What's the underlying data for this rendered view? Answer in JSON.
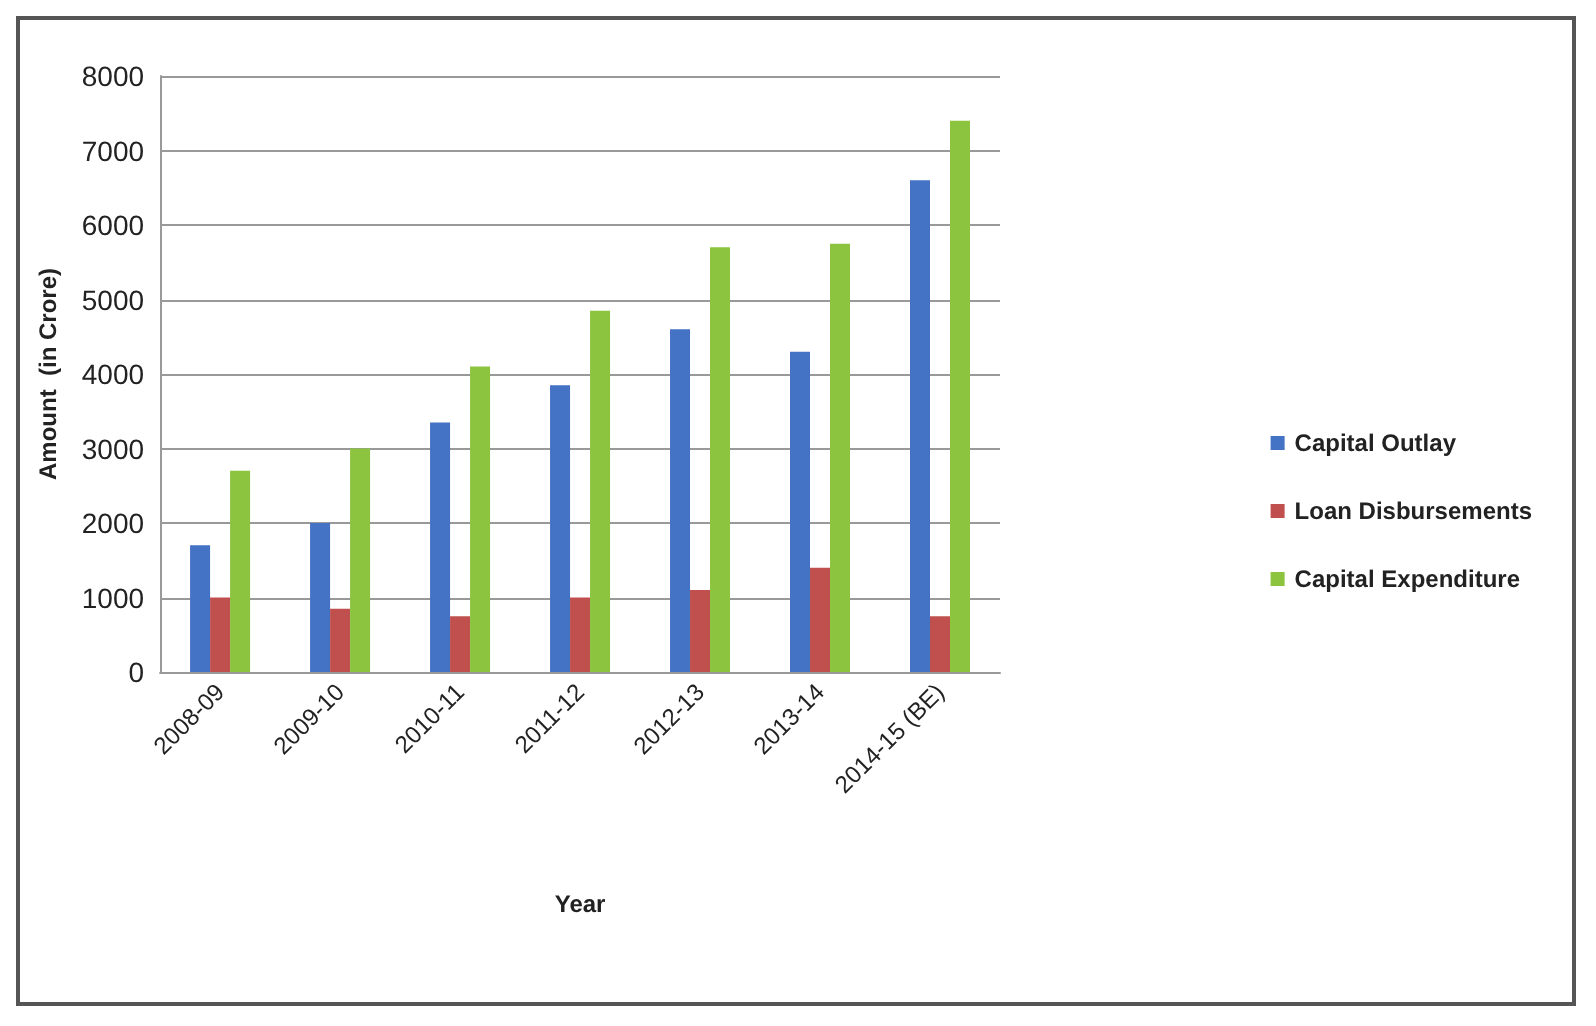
{
  "chart_data": {
    "type": "bar",
    "xlabel": "Year",
    "ylabel": "Amount  (in Crore)",
    "categories": [
      "2008-09",
      "2009-10",
      "2010-11",
      "2011-12",
      "2012-13",
      "2013-14",
      "2014-15 (BE)"
    ],
    "series": [
      {
        "name": "Capital Outlay",
        "color": "#4472c4",
        "values": [
          1700,
          2000,
          3350,
          3850,
          4600,
          4300,
          6600
        ]
      },
      {
        "name": "Loan Disbursements",
        "color": "#c0504d",
        "values": [
          1000,
          850,
          750,
          1000,
          1100,
          1400,
          750
        ]
      },
      {
        "name": "Capital Expenditure",
        "color": "#8cc43f",
        "values": [
          2700,
          3000,
          4100,
          4850,
          5700,
          5750,
          7400
        ]
      }
    ],
    "ylim": [
      0,
      8000
    ],
    "yticks": [
      0,
      1000,
      2000,
      3000,
      4000,
      5000,
      6000,
      7000,
      8000
    ],
    "grid": "y",
    "legend": "right"
  }
}
